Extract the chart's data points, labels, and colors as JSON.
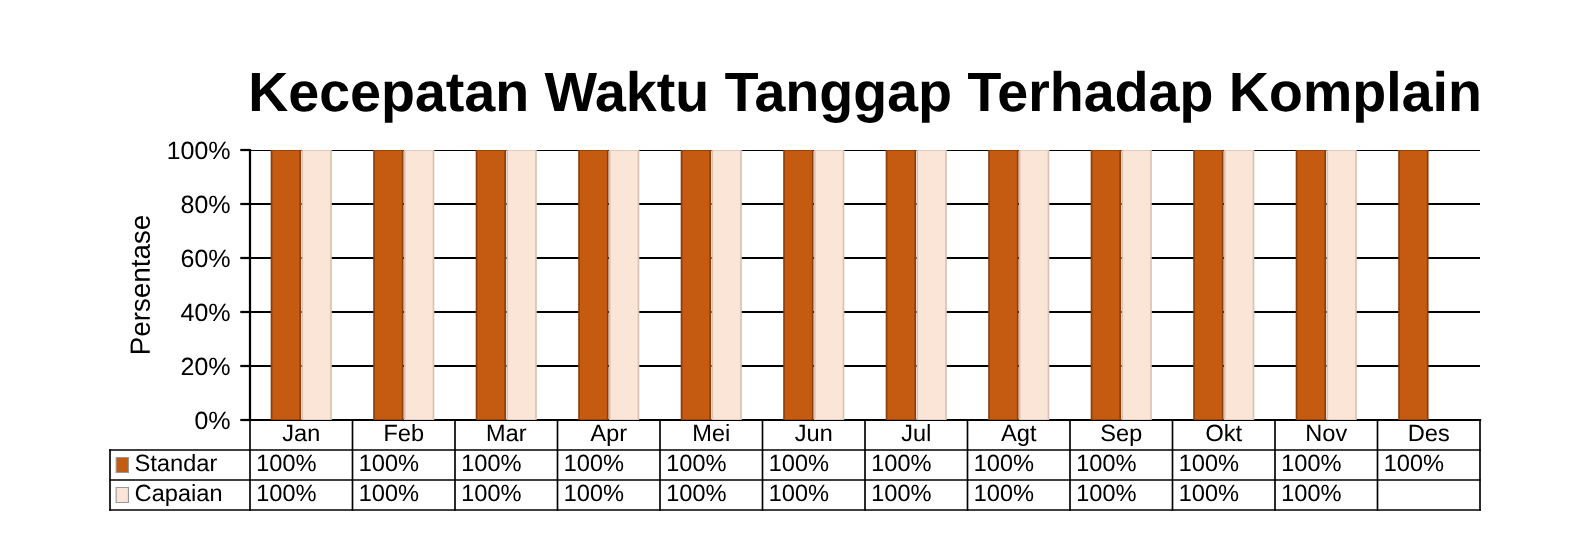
{
  "chart_data": {
    "type": "bar",
    "title": "Kecepatan Waktu Tanggap Terhadap Komplain",
    "ylabel": "Persentase",
    "categories": [
      "Jan",
      "Feb",
      "Mar",
      "Apr",
      "Mei",
      "Jun",
      "Jul",
      "Agt",
      "Sep",
      "Okt",
      "Nov",
      "Des"
    ],
    "series": [
      {
        "name": "Standar",
        "color": "#c55a11",
        "values": [
          100,
          100,
          100,
          100,
          100,
          100,
          100,
          100,
          100,
          100,
          100,
          100
        ],
        "value_labels": [
          "100%",
          "100%",
          "100%",
          "100%",
          "100%",
          "100%",
          "100%",
          "100%",
          "100%",
          "100%",
          "100%",
          "100%"
        ]
      },
      {
        "name": "Capaian",
        "color": "#fbe5d6",
        "values": [
          100,
          100,
          100,
          100,
          100,
          100,
          100,
          100,
          100,
          100,
          100,
          null
        ],
        "value_labels": [
          "100%",
          "100%",
          "100%",
          "100%",
          "100%",
          "100%",
          "100%",
          "100%",
          "100%",
          "100%",
          "100%",
          null
        ]
      }
    ],
    "ylim": [
      0,
      100
    ],
    "yticks": [
      {
        "value": 0,
        "label": "0%"
      },
      {
        "value": 20,
        "label": "20%"
      },
      {
        "value": 40,
        "label": "40%"
      },
      {
        "value": 60,
        "label": "60%"
      },
      {
        "value": 80,
        "label": "80%"
      },
      {
        "value": 100,
        "label": "100%"
      }
    ],
    "grid": "y",
    "legend": "bottom left"
  }
}
